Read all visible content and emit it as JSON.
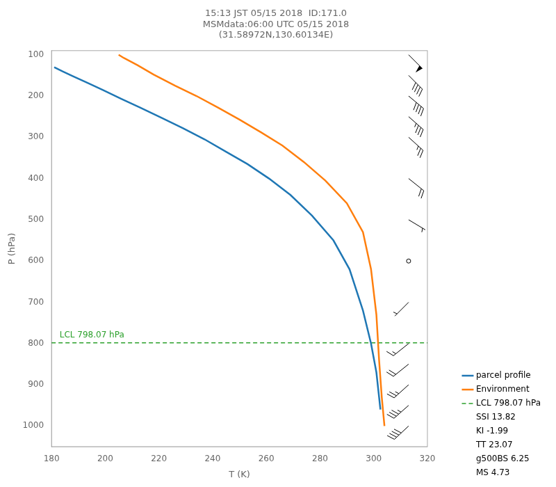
{
  "chart_data": {
    "type": "line",
    "title": "15:13 JST 05/15 2018  ID:171.0\nMSMdata:06:00 UTC 05/15 2018\n(31.58972N,130.60134E)",
    "x_label": "T (K)",
    "y_label": "P (hPa)",
    "xlim": [
      180,
      320
    ],
    "ylim": [
      1050,
      90
    ],
    "xticks": [
      180,
      200,
      220,
      240,
      260,
      280,
      300,
      320
    ],
    "yticks": [
      100,
      200,
      300,
      400,
      500,
      600,
      700,
      800,
      900,
      1000
    ],
    "grid": false,
    "legend": "lower right",
    "series": [
      {
        "name": "parcel profile",
        "color": "#1f77b4",
        "line_style": "solid",
        "x": [
          181,
          184,
          188,
          193,
          199,
          206,
          213,
          221,
          229,
          237,
          245,
          253,
          261,
          269,
          277,
          285,
          291,
          296,
          299,
          301,
          302,
          302.5
        ],
        "values": [
          130,
          140,
          152,
          167,
          185,
          207,
          228,
          253,
          278,
          305,
          335,
          365,
          400,
          440,
          490,
          550,
          620,
          720,
          800,
          870,
          930,
          960
        ]
      },
      {
        "name": "Environment",
        "color": "#ff7f0e",
        "line_style": "solid",
        "x": [
          205,
          207,
          212,
          218,
          226,
          234,
          242,
          250,
          258,
          266,
          274,
          282,
          290,
          296,
          299,
          301,
          302,
          303,
          304
        ],
        "values": [
          100,
          108,
          125,
          148,
          175,
          200,
          228,
          257,
          288,
          320,
          360,
          405,
          460,
          530,
          620,
          730,
          840,
          930,
          1000
        ]
      },
      {
        "name": "LCL 798.07 hPa",
        "color": "#2ca02c",
        "line_style": "dashed",
        "x": [
          180,
          320
        ],
        "values": [
          798.07,
          798.07
        ]
      }
    ],
    "legend_texts": [
      "SSI 13.82",
      "KI -1.99",
      "TT 23.07",
      "g500BS 6.25",
      "MS 4.73"
    ],
    "annotations": [
      {
        "text": "LCL 798.07 hPa",
        "x": 183,
        "y": 790.07,
        "color": "#2ca02c"
      }
    ],
    "wind_barbs": {
      "x": 313,
      "y": [
        100,
        150,
        200,
        250,
        300,
        400,
        500,
        600,
        700,
        800,
        850,
        900,
        950,
        1000
      ],
      "u": [
        -35,
        -30,
        -30,
        -25,
        -20,
        -15,
        -5,
        0,
        5,
        10,
        15,
        20,
        25,
        30
      ],
      "v": [
        35,
        30,
        25,
        22,
        18,
        12,
        3,
        0,
        5,
        8,
        12,
        18,
        22,
        28
      ]
    }
  }
}
